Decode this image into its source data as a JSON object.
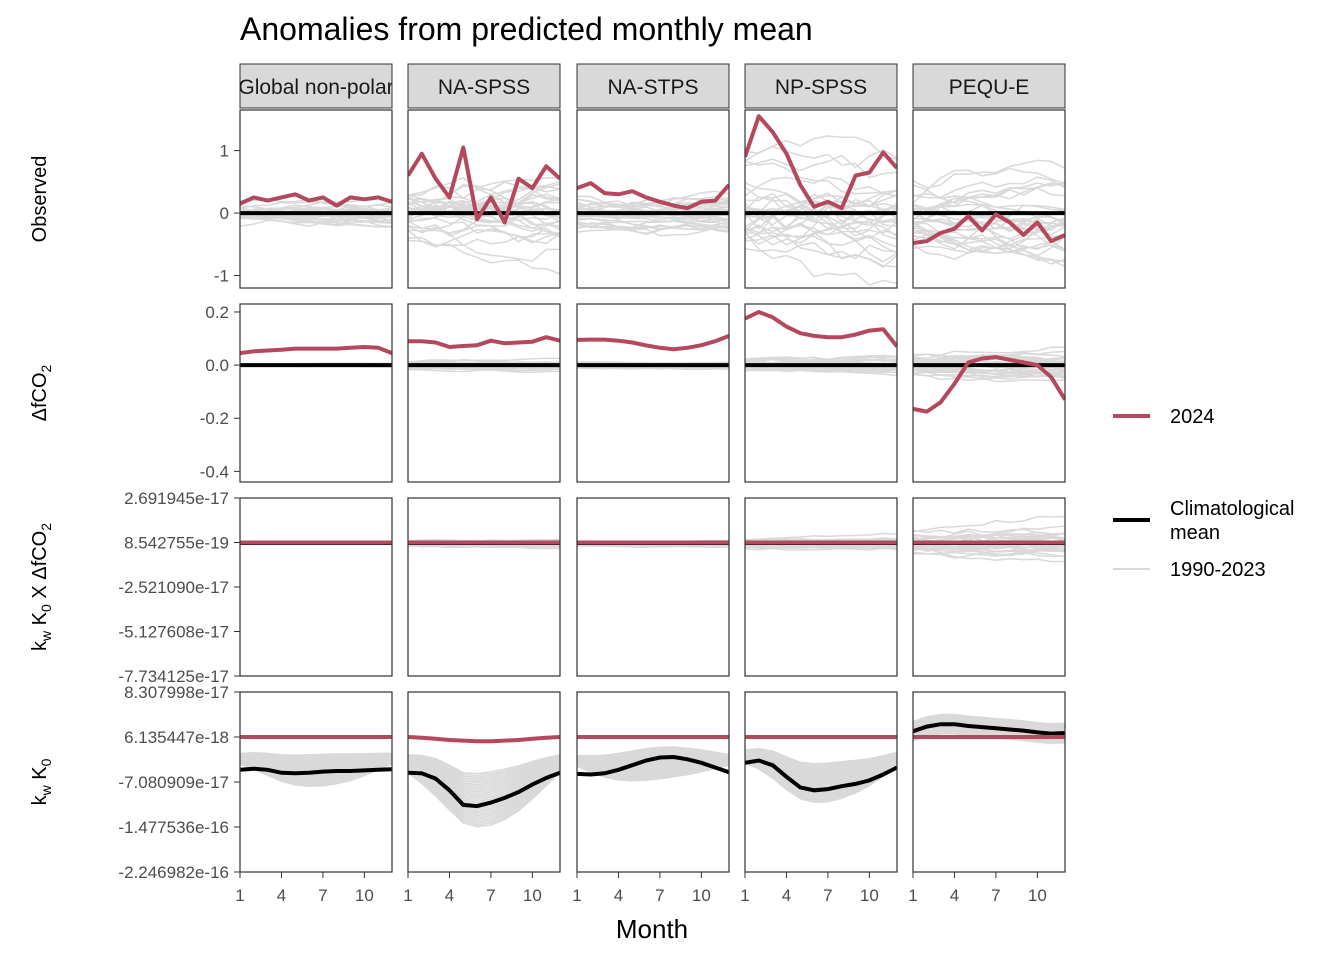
{
  "chart_data": {
    "type": "line",
    "title": "Anomalies from predicted monthly mean",
    "xlabel": "Month",
    "x_ticks": [
      1,
      4,
      7,
      10
    ],
    "x_range": [
      1,
      12
    ],
    "panels": [
      "Global non-polar",
      "NA-SPSS",
      "NA-STPS",
      "NP-SPSS",
      "PEQU-E"
    ],
    "rows": [
      {
        "id": "observed",
        "label": "Observed",
        "yticks": [
          "1",
          "0",
          "-1"
        ],
        "ytick_values": [
          1,
          0,
          -1
        ],
        "ylim": [
          -1.2,
          1.65
        ],
        "series_2024": [
          [
            0.15,
            0.25,
            0.2,
            0.25,
            0.3,
            0.2,
            0.25,
            0.12,
            0.25,
            0.22,
            0.25,
            0.18
          ],
          [
            0.6,
            0.95,
            0.55,
            0.25,
            1.05,
            -0.1,
            0.25,
            -0.15,
            0.55,
            0.4,
            0.75,
            0.55
          ],
          [
            0.4,
            0.48,
            0.32,
            0.3,
            0.35,
            0.25,
            0.18,
            0.12,
            0.08,
            0.18,
            0.2,
            0.45
          ],
          [
            0.9,
            1.55,
            1.3,
            0.95,
            0.45,
            0.1,
            0.18,
            0.08,
            0.6,
            0.65,
            0.97,
            0.72
          ],
          [
            -0.48,
            -0.45,
            -0.32,
            -0.25,
            -0.05,
            -0.28,
            -0.02,
            -0.15,
            -0.35,
            -0.15,
            -0.45,
            -0.35
          ]
        ]
      },
      {
        "id": "dfco2",
        "label": "ΔfCO₂",
        "yticks": [
          "0.2",
          "0.0",
          "-0.2",
          "-0.4"
        ],
        "ytick_values": [
          0.2,
          0,
          -0.2,
          -0.4
        ],
        "ylim": [
          -0.44,
          0.23
        ],
        "series_2024": [
          [
            0.045,
            0.052,
            0.055,
            0.058,
            0.062,
            0.062,
            0.062,
            0.062,
            0.065,
            0.068,
            0.065,
            0.045
          ],
          [
            0.09,
            0.09,
            0.085,
            0.068,
            0.072,
            0.075,
            0.092,
            0.082,
            0.085,
            0.088,
            0.105,
            0.092
          ],
          [
            0.095,
            0.096,
            0.096,
            0.092,
            0.085,
            0.074,
            0.065,
            0.06,
            0.065,
            0.075,
            0.09,
            0.11
          ],
          [
            0.175,
            0.2,
            0.18,
            0.145,
            0.12,
            0.11,
            0.105,
            0.105,
            0.115,
            0.13,
            0.135,
            0.07
          ],
          [
            -0.165,
            -0.175,
            -0.14,
            -0.07,
            0.01,
            0.025,
            0.03,
            0.02,
            0.01,
            0.0,
            -0.045,
            -0.13
          ]
        ]
      },
      {
        "id": "kwk0dfco2",
        "label": "k_w K_0 X ΔfCO_2",
        "yticks": [
          "2.691945e-17",
          "8.542755e-19",
          "-2.521090e-17",
          "-5.127608e-17",
          "-7.734125e-17"
        ],
        "ytick_values": [
          2.691945e-17,
          8.542755e-19,
          -2.52109e-17,
          -5.127608e-17,
          -7.734125e-17
        ],
        "ylim": [
          -7.734125e-17,
          2.691945e-17
        ],
        "series_2024": [
          [
            8.54e-19,
            8.54e-19,
            8.54e-19,
            8.54e-19,
            8.54e-19,
            8.54e-19,
            8.54e-19,
            8.54e-19,
            8.54e-19,
            8.54e-19,
            8.54e-19,
            8.54e-19
          ],
          [
            8.54e-19,
            8.54e-19,
            8.54e-19,
            8.54e-19,
            8.54e-19,
            8.54e-19,
            8.54e-19,
            8.54e-19,
            8.54e-19,
            8.54e-19,
            8.54e-19,
            8.54e-19
          ],
          [
            8.54e-19,
            8.54e-19,
            8.54e-19,
            8.54e-19,
            8.54e-19,
            8.54e-19,
            8.54e-19,
            8.54e-19,
            8.54e-19,
            8.54e-19,
            8.54e-19,
            8.54e-19
          ],
          [
            8.54e-19,
            8.54e-19,
            8.54e-19,
            8.54e-19,
            8.54e-19,
            8.54e-19,
            8.54e-19,
            8.54e-19,
            8.54e-19,
            8.54e-19,
            8.54e-19,
            8.54e-19
          ],
          [
            8.54e-19,
            8.54e-19,
            8.54e-19,
            8.54e-19,
            8.54e-19,
            8.54e-19,
            8.54e-19,
            8.54e-19,
            8.54e-19,
            8.54e-19,
            8.54e-19,
            8.54e-19
          ]
        ]
      },
      {
        "id": "kwk0",
        "label": "k_w K_0",
        "yticks": [
          "8.307998e-17",
          "6.135447e-18",
          "-7.080909e-17",
          "-1.477536e-16",
          "-2.246982e-16"
        ],
        "ytick_values": [
          8.307998e-17,
          6.135447e-18,
          -7.080909e-17,
          -1.477536e-16,
          -2.246982e-16
        ],
        "ylim": [
          -2.246982e-16,
          8.307998e-17
        ],
        "series_2024": [
          [
            6.1e-18,
            6.1e-18,
            6.1e-18,
            6.1e-18,
            6.1e-18,
            6.1e-18,
            6.1e-18,
            6.1e-18,
            6.1e-18,
            6.1e-18,
            6.1e-18,
            6.1e-18
          ],
          [
            6.1e-18,
            5e-18,
            3e-18,
            1e-18,
            0,
            -1e-18,
            -1e-18,
            0,
            1e-18,
            3e-18,
            5e-18,
            6.1e-18
          ],
          [
            6.1e-18,
            6.1e-18,
            6.1e-18,
            6.1e-18,
            6.1e-18,
            6.1e-18,
            6.1e-18,
            6.1e-18,
            6.1e-18,
            6.1e-18,
            6.1e-18,
            6.1e-18
          ],
          [
            6.1e-18,
            6.1e-18,
            6.1e-18,
            6.1e-18,
            6.1e-18,
            6.1e-18,
            6.1e-18,
            6.1e-18,
            6.1e-18,
            6.1e-18,
            6.1e-18,
            6.1e-18
          ],
          [
            6.1e-18,
            6.1e-18,
            6.1e-18,
            6.1e-18,
            6.1e-18,
            6.1e-18,
            6.1e-18,
            6.1e-18,
            6.1e-18,
            6.1e-18,
            6.1e-18,
            6.1e-18
          ]
        ],
        "series_clim": [
          [
            -5e-17,
            -4.8e-17,
            -5e-17,
            -5.5e-17,
            -5.6e-17,
            -5.5e-17,
            -5.3e-17,
            -5.2e-17,
            -5.2e-17,
            -5.1e-17,
            -5e-17,
            -4.9e-17
          ],
          [
            -5.5e-17,
            -5.6e-17,
            -6.5e-17,
            -8.5e-17,
            -1.1e-16,
            -1.12e-16,
            -1.06e-16,
            -9.8e-17,
            -8.8e-17,
            -7.5e-17,
            -6.4e-17,
            -5.5e-17
          ],
          [
            -5.7e-17,
            -5.8e-17,
            -5.6e-17,
            -5e-17,
            -4.2e-17,
            -3.4e-17,
            -2.9e-17,
            -2.8e-17,
            -3.2e-17,
            -3.8e-17,
            -4.6e-17,
            -5.4e-17
          ],
          [
            -3.8e-17,
            -3.4e-17,
            -4.2e-17,
            -6.2e-17,
            -8e-17,
            -8.5e-17,
            -8.3e-17,
            -7.8e-17,
            -7.4e-17,
            -6.8e-17,
            -5.8e-17,
            -4.6e-17
          ],
          [
            1.6e-17,
            2.4e-17,
            2.8e-17,
            2.8e-17,
            2.5e-17,
            2.3e-17,
            2.1e-17,
            1.9e-17,
            1.7e-17,
            1.4e-17,
            1.2e-17,
            1.3e-17
          ]
        ]
      }
    ],
    "legend": {
      "position": "right",
      "entries": [
        {
          "label": "2024",
          "color": "#b5485d"
        },
        {
          "label": "Climatological mean",
          "label_lines": [
            "Climatological",
            "mean"
          ],
          "color": "#000000"
        },
        {
          "label": "1990-2023",
          "color": "#d9d9d9"
        }
      ]
    },
    "colors": {
      "year_2024": "#b5485d",
      "clim_mean": "#000000",
      "past_years": "#d9d9d9",
      "strip_fill": "#d9d9d9",
      "panel_border": "#333333"
    }
  }
}
